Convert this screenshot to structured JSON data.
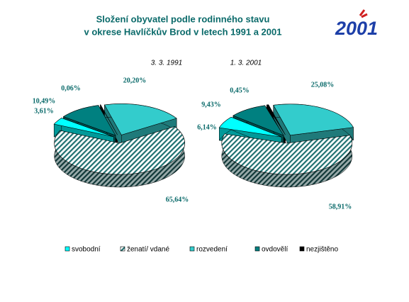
{
  "title": "Složení obyvatel podle rodinného stavu",
  "subtitle": "v okrese  Havlíčkův Brod  v letech 1991 a 2001",
  "logo": "2001",
  "chart_data": [
    {
      "type": "pie",
      "title": "3. 3. 1991",
      "categories": [
        "svobodní",
        "ženatí/ vdané",
        "rozvedení",
        "ovdovělí",
        "nezjištěno"
      ],
      "values": [
        3.61,
        65.64,
        20.2,
        10.49,
        0.06
      ],
      "value_labels": [
        "3,61%",
        "65,64%",
        "20,20%",
        "10,49%",
        "0,06%"
      ],
      "colors": [
        "#00ffff",
        "#1f7070",
        "#33cccc",
        "#008080",
        "#000000"
      ],
      "fills": [
        "solid",
        "hatch",
        "solid",
        "solid",
        "solid"
      ]
    },
    {
      "type": "pie",
      "title": "1. 3. 2001",
      "categories": [
        "svobodní",
        "ženatí/ vdané",
        "rozvedení",
        "ovdovělí",
        "nezjištěno"
      ],
      "values": [
        6.14,
        58.91,
        25.08,
        9.43,
        0.45
      ],
      "value_labels": [
        "6,14%",
        "58,91%",
        "25,08%",
        "9,43%",
        "0,45%"
      ],
      "colors": [
        "#00ffff",
        "#1f7070",
        "#33cccc",
        "#008080",
        "#000000"
      ],
      "fills": [
        "solid",
        "hatch",
        "solid",
        "solid",
        "solid"
      ]
    }
  ]
}
